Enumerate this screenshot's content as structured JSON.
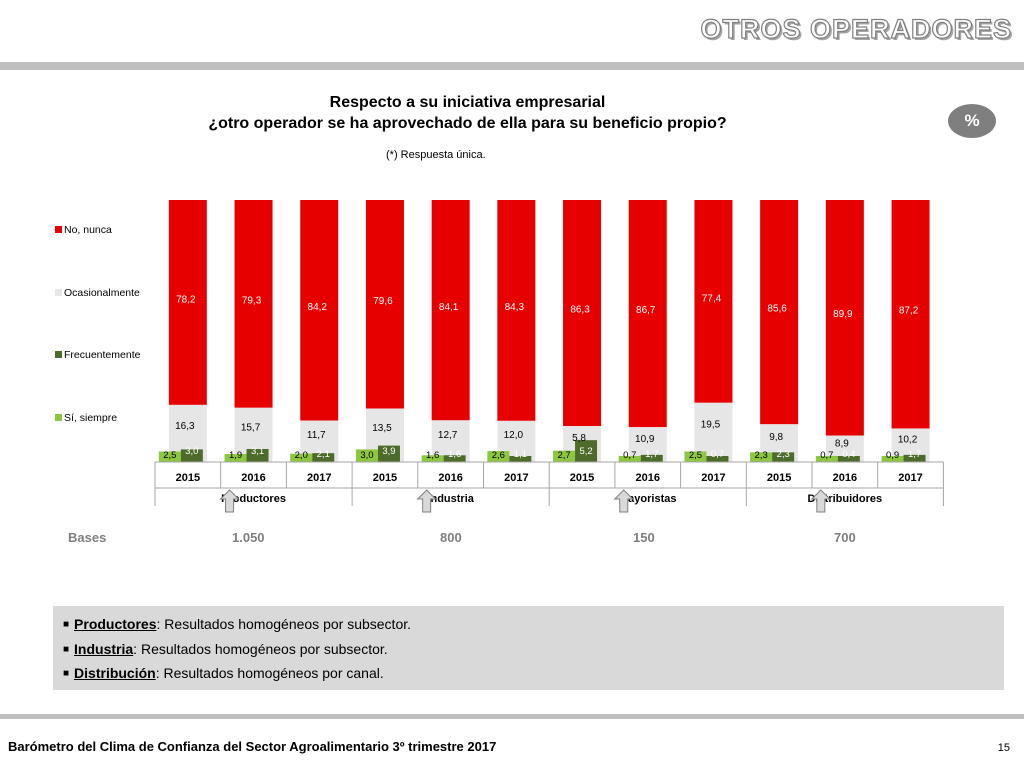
{
  "header": {
    "title": "OTROS OPERADORES"
  },
  "chart_title": {
    "line1": "Respecto a su iniciativa empresarial",
    "line2": "¿otro operador se ha aprovechado de ella para su beneficio propio?",
    "note": "(*) Respuesta única."
  },
  "unit_badge": "%",
  "chart_data": {
    "type": "bar",
    "stacked": true,
    "groups": [
      "Productores",
      "Industria",
      "Mayoristas",
      "Distribuidores"
    ],
    "years": [
      "2015",
      "2016",
      "2017"
    ],
    "categories": [
      "Productores 2015",
      "Productores 2016",
      "Productores 2017",
      "Industria 2015",
      "Industria 2016",
      "Industria 2017",
      "Mayoristas 2015",
      "Mayoristas 2016",
      "Mayoristas 2017",
      "Distribuidores 2015",
      "Distribuidores 2016",
      "Distribuidores 2017"
    ],
    "series": [
      {
        "name": "No, nunca",
        "color": "#e60000",
        "values": [
          78.2,
          79.3,
          84.2,
          79.6,
          84.1,
          84.3,
          86.3,
          86.7,
          77.4,
          85.6,
          89.9,
          87.2
        ]
      },
      {
        "name": "Ocasionalmente",
        "color": "#e6e6e6",
        "values": [
          16.3,
          15.7,
          11.7,
          13.5,
          12.7,
          12.0,
          5.8,
          10.9,
          19.5,
          9.8,
          8.9,
          10.2
        ]
      },
      {
        "name": "Frecuentemente",
        "color": "#4d6b2b",
        "values": [
          3.0,
          3.1,
          2.1,
          3.9,
          1.6,
          1.1,
          5.2,
          1.7,
          0.7,
          2.3,
          0.4,
          1.7
        ]
      },
      {
        "name": "Sí, siempre",
        "color": "#8dc63f",
        "values": [
          2.5,
          1.9,
          2.0,
          3.0,
          1.6,
          2.6,
          2.7,
          0.7,
          2.5,
          2.3,
          0.7,
          0.9
        ]
      }
    ],
    "labels": [
      [
        "78,2",
        "79,3",
        "84,2",
        "79,6",
        "84,1",
        "84,3",
        "86,3",
        "86,7",
        "77,4",
        "85,6",
        "89,9",
        "87,2"
      ],
      [
        "16,3",
        "15,7",
        "11,7",
        "13,5",
        "12,7",
        "12,0",
        "5,8",
        "10,9",
        "19,5",
        "9,8",
        "8,9",
        "10,2"
      ],
      [
        "3,0",
        "3,1",
        "2,1",
        "3,9",
        "1,6",
        "1,1",
        "5,2",
        "1,7",
        "0,7",
        "2,3",
        "0,4",
        "1,7"
      ],
      [
        "2,5",
        "1,9",
        "2,0",
        "3,0",
        "1,6",
        "2,6",
        "2,7",
        "0,7",
        "2,5",
        "2,3",
        "0,7",
        "0,9"
      ]
    ],
    "highlight_year": "2017",
    "legend_position": "left",
    "ylim": [
      0,
      100
    ]
  },
  "bases": {
    "label": "Bases",
    "values": [
      "1.050",
      "800",
      "150",
      "700"
    ]
  },
  "notes": [
    {
      "title": "Productores",
      "sep": ":",
      "text": " Resultados homogéneos por subsector."
    },
    {
      "title": "Industria",
      "sep": ":",
      "text": " Resultados homogéneos por subsector."
    },
    {
      "title": "Distribución",
      "sep": ":",
      "text": " Resultados homogéneos por canal."
    }
  ],
  "footer": {
    "text": "Barómetro del Clima de Confianza del Sector Agroalimentario 3º trimestre 2017",
    "page": "15"
  }
}
